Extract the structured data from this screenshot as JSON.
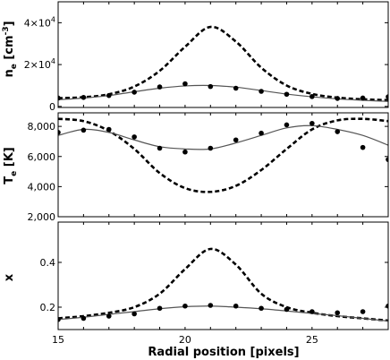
{
  "chart_data": [
    {
      "type": "line",
      "ylabel": "n_e [cm^-3]",
      "ylabel_parts": {
        "main": "n",
        "sub": "e",
        "rest": " [cm",
        "sup": "-3",
        "close": "]"
      },
      "xlim": [
        15,
        28
      ],
      "ylim": [
        -500,
        50000
      ],
      "yticks": [
        {
          "value": 0,
          "label": "0"
        },
        {
          "value": 20000,
          "label": "2×10",
          "exp": "4"
        },
        {
          "value": 40000,
          "label": "4×10",
          "exp": "4"
        }
      ],
      "series": [
        {
          "style": "dashed",
          "points": [
            [
              15,
              3900
            ],
            [
              16,
              4400
            ],
            [
              17,
              5800
            ],
            [
              18,
              9500
            ],
            [
              19,
              17000
            ],
            [
              20,
              28500
            ],
            [
              21,
              38000
            ],
            [
              22,
              31000
            ],
            [
              23,
              18500
            ],
            [
              24,
              10000
            ],
            [
              25,
              6000
            ],
            [
              26,
              4200
            ],
            [
              27,
              3400
            ],
            [
              28,
              3000
            ]
          ]
        },
        {
          "style": "solid",
          "points": [
            [
              15,
              3200
            ],
            [
              16,
              4000
            ],
            [
              17,
              5200
            ],
            [
              18,
              7000
            ],
            [
              19,
              8700
            ],
            [
              20,
              9800
            ],
            [
              21,
              10000
            ],
            [
              22,
              9200
            ],
            [
              23,
              7600
            ],
            [
              24,
              5900
            ],
            [
              25,
              4600
            ],
            [
              26,
              3600
            ],
            [
              27,
              2900
            ],
            [
              28,
              2400
            ]
          ]
        },
        {
          "style": "points",
          "points": [
            [
              15,
              4000
            ],
            [
              16,
              4300
            ],
            [
              17,
              5200
            ],
            [
              18,
              6800
            ],
            [
              19,
              9300
            ],
            [
              20,
              10800
            ],
            [
              21,
              9500
            ],
            [
              22,
              8700
            ],
            [
              23,
              7200
            ],
            [
              24,
              5800
            ],
            [
              25,
              4700
            ],
            [
              26,
              3800
            ],
            [
              27,
              4000
            ],
            [
              28,
              4600
            ]
          ]
        }
      ]
    },
    {
      "type": "line",
      "ylabel": "T_e [K]",
      "ylabel_parts": {
        "main": "T",
        "sub": "e",
        "rest": " [K]"
      },
      "xlim": [
        15,
        28
      ],
      "ylim": [
        2000,
        8900
      ],
      "yticks": [
        {
          "value": 2000,
          "label": "2,000"
        },
        {
          "value": 4000,
          "label": "4,000"
        },
        {
          "value": 6000,
          "label": "6,000"
        },
        {
          "value": 8000,
          "label": "8,000"
        }
      ],
      "series": [
        {
          "style": "dashed",
          "points": [
            [
              15,
              8500
            ],
            [
              16,
              8350
            ],
            [
              17,
              7700
            ],
            [
              18,
              6500
            ],
            [
              19,
              4900
            ],
            [
              20,
              3900
            ],
            [
              21,
              3650
            ],
            [
              22,
              4050
            ],
            [
              23,
              5100
            ],
            [
              24,
              6500
            ],
            [
              25,
              7800
            ],
            [
              26,
              8400
            ],
            [
              27,
              8500
            ],
            [
              28,
              8350
            ]
          ]
        },
        {
          "style": "solid",
          "points": [
            [
              15,
              7400
            ],
            [
              16,
              7800
            ],
            [
              17,
              7600
            ],
            [
              18,
              7100
            ],
            [
              19,
              6650
            ],
            [
              20,
              6500
            ],
            [
              21,
              6500
            ],
            [
              22,
              6900
            ],
            [
              23,
              7400
            ],
            [
              24,
              7900
            ],
            [
              25,
              8050
            ],
            [
              26,
              7800
            ],
            [
              27,
              7400
            ],
            [
              28,
              6750
            ]
          ]
        },
        {
          "style": "points",
          "points": [
            [
              15,
              7600
            ],
            [
              16,
              7750
            ],
            [
              17,
              7800
            ],
            [
              18,
              7300
            ],
            [
              19,
              6550
            ],
            [
              20,
              6300
            ],
            [
              21,
              6550
            ],
            [
              22,
              7100
            ],
            [
              23,
              7550
            ],
            [
              24,
              8100
            ],
            [
              25,
              8200
            ],
            [
              26,
              7650
            ],
            [
              27,
              6600
            ],
            [
              28,
              5800
            ]
          ]
        }
      ]
    },
    {
      "type": "line",
      "xlabel": "Radial position [pixels]",
      "ylabel": "x",
      "ylabel_parts": {
        "main": "x"
      },
      "xlim": [
        15,
        28
      ],
      "ylim": [
        0.1,
        0.58
      ],
      "xticks": [
        15,
        20,
        25
      ],
      "yticks": [
        {
          "value": 0.2,
          "label": "0.2"
        },
        {
          "value": 0.4,
          "label": "0.4"
        }
      ],
      "series": [
        {
          "style": "dashed",
          "points": [
            [
              15,
              0.15
            ],
            [
              16,
              0.16
            ],
            [
              17,
              0.175
            ],
            [
              18,
              0.2
            ],
            [
              19,
              0.26
            ],
            [
              20,
              0.37
            ],
            [
              21,
              0.46
            ],
            [
              22,
              0.39
            ],
            [
              23,
              0.26
            ],
            [
              24,
              0.2
            ],
            [
              25,
              0.175
            ],
            [
              26,
              0.16
            ],
            [
              27,
              0.15
            ],
            [
              28,
              0.14
            ]
          ]
        },
        {
          "style": "solid",
          "points": [
            [
              15,
              0.145
            ],
            [
              16,
              0.155
            ],
            [
              17,
              0.168
            ],
            [
              18,
              0.18
            ],
            [
              19,
              0.193
            ],
            [
              20,
              0.202
            ],
            [
              21,
              0.205
            ],
            [
              22,
              0.2
            ],
            [
              23,
              0.193
            ],
            [
              24,
              0.183
            ],
            [
              25,
              0.172
            ],
            [
              26,
              0.162
            ],
            [
              27,
              0.15
            ],
            [
              28,
              0.138
            ]
          ]
        },
        {
          "style": "points",
          "points": [
            [
              15,
              0.145
            ],
            [
              16,
              0.15
            ],
            [
              17,
              0.16
            ],
            [
              18,
              0.17
            ],
            [
              19,
              0.195
            ],
            [
              20,
              0.205
            ],
            [
              21,
              0.208
            ],
            [
              22,
              0.205
            ],
            [
              23,
              0.195
            ],
            [
              24,
              0.19
            ],
            [
              25,
              0.18
            ],
            [
              26,
              0.175
            ],
            [
              27,
              0.18
            ],
            [
              28,
              0.205
            ]
          ]
        }
      ]
    }
  ]
}
